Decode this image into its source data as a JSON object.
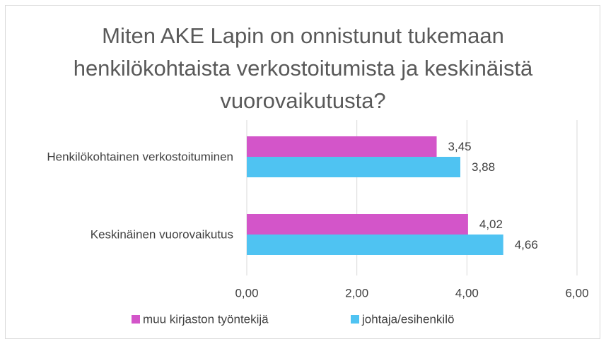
{
  "chart_data": {
    "type": "bar",
    "orientation": "horizontal",
    "title": "Miten AKE Lapin on onnistunut tukemaan henkilökohtaista verkostoitumista ja keskinäistä vuorovaikutusta?",
    "categories": [
      "Henkilökohtainen verkostoituminen",
      "Keskinäinen vuorovaikutus"
    ],
    "series": [
      {
        "name": "muu kirjaston työntekijä",
        "color": "#d355c9",
        "values": [
          3.45,
          4.02
        ],
        "value_labels": [
          "3,45",
          "4,02"
        ]
      },
      {
        "name": "johtaja/esihenkilö",
        "color": "#4fc3f2",
        "values": [
          3.88,
          4.66
        ],
        "value_labels": [
          "3,88",
          "4,66"
        ]
      }
    ],
    "xlim": [
      0,
      6
    ],
    "xticks": [
      {
        "value": 0,
        "label": "0,00"
      },
      {
        "value": 2,
        "label": "2,00"
      },
      {
        "value": 4,
        "label": "4,00"
      },
      {
        "value": 6,
        "label": "6,00"
      }
    ],
    "grid": true,
    "legend": "bottom"
  }
}
